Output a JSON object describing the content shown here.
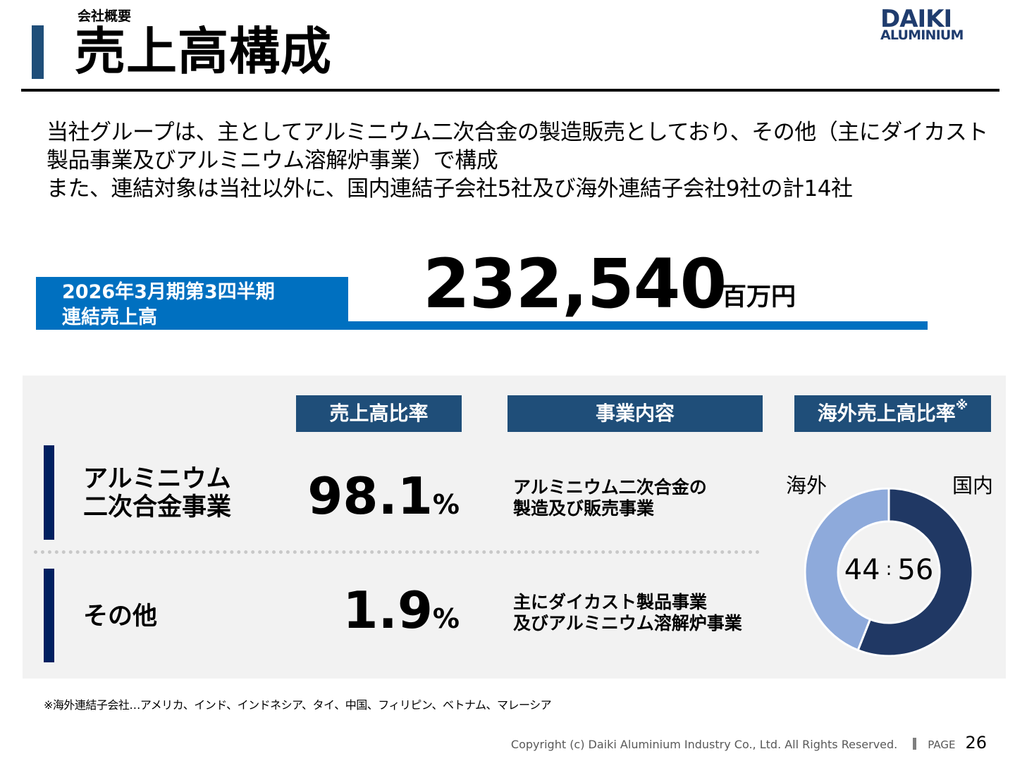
{
  "header": {
    "breadcrumb": "会社概要",
    "title": "売上高構成",
    "logo": {
      "line1": "DAIKI",
      "line2": "ALUMINIUM"
    },
    "accent_color": "#1f4e79"
  },
  "intro": {
    "lines": [
      "当社グループは、主としてアルミニウム二次合金の製造販売としており、その他（主にダイカスト",
      "製品事業及びアルミニウム溶解炉事業）で構成",
      "また、連結対象は当社以外に、国内連結子会社5社及び海外連結子会社9社の計14社"
    ]
  },
  "kpi": {
    "label_line1": "2026年3月期第3四半期",
    "label_line2": "連結売上高",
    "value": "232,540",
    "unit": "百万円",
    "color": "#0070c0"
  },
  "table": {
    "headers": {
      "ratio": "売上高比率",
      "content": "事業内容",
      "overseas": "海外売上高比率",
      "overseas_mark": "※"
    },
    "header_color": "#1f4e79",
    "rows": [
      {
        "name_line1": "アルミニウム",
        "name_line2": "二次合金事業",
        "pct": "98.1",
        "pct_unit": "%",
        "desc_line1": "アルミニウム二次合金の",
        "desc_line2": "製造及び販売事業"
      },
      {
        "name_line1": "その他",
        "name_line2": "",
        "pct": "1.9",
        "pct_unit": "%",
        "desc_line1": "主にダイカスト製品事業",
        "desc_line2": "及びアルミニウム溶解炉事業"
      }
    ]
  },
  "chart_data": {
    "type": "pie",
    "variant": "donut",
    "title": "海外売上高比率※",
    "categories": [
      "海外",
      "国内"
    ],
    "values": [
      44,
      56
    ],
    "colors": [
      "#8eaadb",
      "#203864"
    ],
    "center_label": "44：56",
    "center_left": "44",
    "center_sep": ":",
    "center_right": "56",
    "legend_position": "labels above chart"
  },
  "footnote": "※海外連結子会社…アメリカ、インド、インドネシア、タイ、中国、フィリピン、ベトナム、マレーシア",
  "footer": {
    "copyright": "Copyright (c) Daiki Aluminium Industry Co., Ltd. All Rights Reserved.",
    "page_label": "PAGE",
    "page_number": "26"
  }
}
